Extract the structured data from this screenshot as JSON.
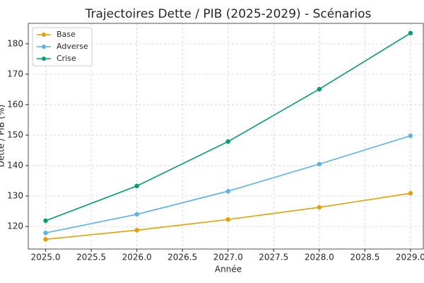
{
  "chart_data": {
    "type": "line",
    "title": "Trajectoires Dette / PIB (2025-2029) - Scénarios",
    "x_label": "Année",
    "y_label": "Dette / PIB (%)",
    "x": [
      2025,
      2026,
      2027,
      2028,
      2029
    ],
    "series": [
      {
        "name": "Base",
        "color": "#E69F00",
        "values": [
          115.8,
          118.8,
          122.3,
          126.3,
          130.9
        ]
      },
      {
        "name": "Adverse",
        "color": "#56B4E9",
        "values": [
          117.9,
          124.0,
          131.6,
          140.5,
          149.8
        ]
      },
      {
        "name": "Crise",
        "color": "#009E73",
        "values": [
          121.9,
          133.3,
          147.9,
          165.1,
          183.5
        ]
      }
    ],
    "xlim": [
      2024.81,
      2029.14
    ],
    "ylim": [
      112.6,
      186.7
    ],
    "xticks": [
      {
        "value": 2025,
        "label": "2025.0"
      },
      {
        "value": 2025.5,
        "label": "2025.5"
      },
      {
        "value": 2026,
        "label": "2026.0"
      },
      {
        "value": 2026.5,
        "label": "2026.5"
      },
      {
        "value": 2027,
        "label": "2027.0"
      },
      {
        "value": 2027.5,
        "label": "2027.5"
      },
      {
        "value": 2028,
        "label": "2028.0"
      },
      {
        "value": 2028.5,
        "label": "2028.5"
      },
      {
        "value": 2029,
        "label": "2029.0"
      }
    ],
    "yticks": [
      120,
      130,
      140,
      150,
      160,
      170,
      180
    ],
    "grid": true,
    "legend": "upper-left"
  }
}
